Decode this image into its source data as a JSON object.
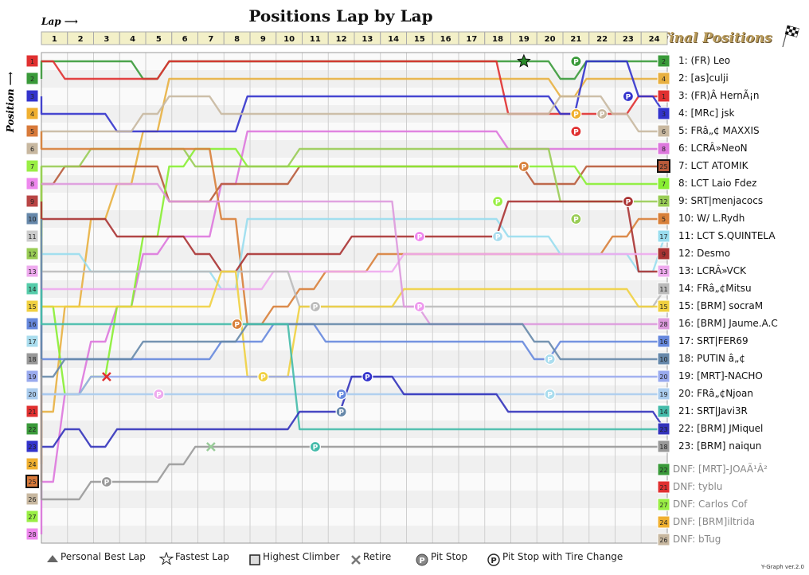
{
  "title": "Positions Lap by Lap",
  "lap_label": "Lap",
  "position_label": "Position",
  "final_title": "Final Positions",
  "footer": "Y-Graph ver.2.0",
  "legend": {
    "personal_best": "Personal Best Lap",
    "fastest": "Fastest Lap",
    "highest_climber": "Highest Climber",
    "retire": "Retire",
    "pit_stop": "Pit Stop",
    "pit_tire": "Pit Stop with Tire Change"
  },
  "chart_data": {
    "type": "line",
    "laps": [
      1,
      2,
      3,
      4,
      5,
      6,
      7,
      8,
      9,
      10,
      11,
      12,
      13,
      14,
      15,
      16,
      17,
      18,
      19,
      20,
      21,
      22,
      23,
      24
    ],
    "positions": [
      1,
      2,
      3,
      4,
      5,
      6,
      7,
      8,
      9,
      10,
      11,
      12,
      13,
      14,
      15,
      16,
      17,
      18,
      19,
      20,
      21,
      22,
      23,
      24,
      25,
      26,
      27,
      28
    ],
    "grid": [
      {
        "pos": 1,
        "num": "1",
        "color": "#e03030"
      },
      {
        "pos": 2,
        "num": "2",
        "color": "#3a9a3a"
      },
      {
        "pos": 3,
        "num": "3",
        "color": "#3333cc"
      },
      {
        "pos": 4,
        "num": "4",
        "color": "#f0b030"
      },
      {
        "pos": 5,
        "num": "5",
        "color": "#d87a3a"
      },
      {
        "pos": 6,
        "num": "6",
        "color": "#c8b8a0"
      },
      {
        "pos": 7,
        "num": "7",
        "color": "#99ee44"
      },
      {
        "pos": 8,
        "num": "8",
        "color": "#ee88ee"
      },
      {
        "pos": 9,
        "num": "9",
        "color": "#b84444"
      },
      {
        "pos": 10,
        "num": "10",
        "color": "#6688aa"
      },
      {
        "pos": 11,
        "num": "11",
        "color": "#cccccc"
      },
      {
        "pos": 12,
        "num": "12",
        "color": "#99cc55"
      },
      {
        "pos": 13,
        "num": "13",
        "color": "#eeaaee"
      },
      {
        "pos": 14,
        "num": "14",
        "color": "#55ccaa"
      },
      {
        "pos": 15,
        "num": "15",
        "color": "#f0d040"
      },
      {
        "pos": 16,
        "num": "16",
        "color": "#6688dd"
      },
      {
        "pos": 17,
        "num": "17",
        "color": "#aaddee"
      },
      {
        "pos": 18,
        "num": "18",
        "color": "#999999"
      },
      {
        "pos": 19,
        "num": "19",
        "color": "#99aaee"
      },
      {
        "pos": 20,
        "num": "20",
        "color": "#aaccee"
      },
      {
        "pos": 21,
        "num": "21",
        "color": "#e03030"
      },
      {
        "pos": 22,
        "num": "22",
        "color": "#3a9a3a"
      },
      {
        "pos": 23,
        "num": "23",
        "color": "#3333cc"
      },
      {
        "pos": 24,
        "num": "24",
        "color": "#f0b030"
      },
      {
        "pos": 25,
        "num": "25",
        "color": "#d87a3a"
      },
      {
        "pos": 26,
        "num": "26",
        "color": "#c8b8a0"
      },
      {
        "pos": 27,
        "num": "27",
        "color": "#99ee44"
      },
      {
        "pos": 28,
        "num": "28",
        "color": "#ee88ee"
      }
    ],
    "series": [
      {
        "name": "1: (FR) Leo",
        "num": "2",
        "color": "#3a9a3a",
        "start": 2,
        "path": [
          1,
          1,
          1,
          1,
          2,
          1,
          1,
          1,
          1,
          1,
          1,
          1,
          1,
          1,
          1,
          1,
          1,
          1,
          1,
          1,
          2,
          1,
          1,
          1,
          1
        ]
      },
      {
        "name": "2: [as]culji",
        "num": "4",
        "color": "#e8b040",
        "start": 24,
        "path": [
          21,
          15,
          10,
          8,
          5,
          2,
          2,
          2,
          2,
          2,
          2,
          2,
          2,
          2,
          2,
          2,
          2,
          2,
          2,
          2,
          3,
          2,
          2,
          2,
          2
        ]
      },
      {
        "name": "3: (FR)Â HernÃ¡n",
        "num": "1",
        "color": "#e03030",
        "start": 1,
        "path": [
          1,
          2,
          2,
          2,
          2,
          1,
          1,
          1,
          1,
          1,
          1,
          1,
          1,
          1,
          1,
          1,
          1,
          1,
          4,
          4,
          4,
          4,
          4,
          3,
          3
        ]
      },
      {
        "name": "4: [MRc] jsk",
        "num": "3",
        "color": "#3333cc",
        "start": 3,
        "path": [
          4,
          4,
          4,
          5,
          5,
          5,
          5,
          5,
          3,
          3,
          3,
          3,
          3,
          3,
          3,
          3,
          3,
          3,
          3,
          3,
          4,
          1,
          1,
          3,
          4
        ]
      },
      {
        "name": "5: FRâ„¢ MAXXIS",
        "num": "6",
        "color": "#c8b8a0",
        "start": 6,
        "path": [
          5,
          5,
          5,
          5,
          4,
          3,
          3,
          4,
          4,
          4,
          4,
          4,
          4,
          4,
          4,
          4,
          4,
          4,
          4,
          4,
          3,
          3,
          4,
          5,
          5
        ]
      },
      {
        "name": "6: LCRÂ»NeoN",
        "num": "8",
        "color": "#dd77dd",
        "start": 28,
        "path": [
          25,
          20,
          17,
          15,
          12,
          11,
          11,
          8,
          5,
          5,
          5,
          5,
          5,
          5,
          5,
          5,
          5,
          5,
          6,
          6,
          6,
          6,
          6,
          6,
          6
        ]
      },
      {
        "name": "7: LCT ATOMIK",
        "num": "25",
        "color": "#b85a3a",
        "start": 25,
        "path": [
          8,
          7,
          7,
          7,
          7,
          9,
          9,
          8,
          8,
          8,
          7,
          7,
          7,
          7,
          7,
          7,
          7,
          7,
          7,
          8,
          8,
          7,
          7,
          7,
          7
        ]
      },
      {
        "name": "8: LCT Laio Fdez",
        "num": "7",
        "color": "#88ee33",
        "start": 7,
        "path": [
          15,
          20,
          19,
          15,
          11,
          7,
          6,
          6,
          7,
          7,
          7,
          7,
          7,
          7,
          7,
          7,
          7,
          7,
          7,
          7,
          7,
          8,
          8,
          8,
          8
        ]
      },
      {
        "name": "9: SRT|menjacocs",
        "num": "12",
        "color": "#99cc55",
        "start": 12,
        "path": [
          7,
          7,
          6,
          6,
          6,
          6,
          7,
          7,
          7,
          7,
          6,
          6,
          6,
          6,
          6,
          6,
          6,
          6,
          6,
          6,
          9,
          9,
          9,
          9,
          9
        ]
      },
      {
        "name": "10: W/ L.Rydh",
        "num": "5",
        "color": "#d8803a",
        "start": 5,
        "path": [
          6,
          6,
          6,
          6,
          6,
          6,
          6,
          10,
          16,
          15,
          14,
          13,
          13,
          12,
          12,
          12,
          12,
          12,
          12,
          12,
          12,
          12,
          11,
          10,
          10
        ]
      },
      {
        "name": "11: LCT S.QUINTELA",
        "num": "17",
        "color": "#99ddee",
        "start": 17,
        "path": [
          12,
          12,
          13,
          13,
          13,
          13,
          13,
          14,
          10,
          10,
          10,
          10,
          10,
          10,
          10,
          10,
          10,
          10,
          11,
          11,
          12,
          12,
          12,
          13,
          11
        ]
      },
      {
        "name": "12: Desmo",
        "num": "9",
        "color": "#aa3333",
        "start": 9,
        "path": [
          10,
          10,
          10,
          11,
          11,
          11,
          12,
          13,
          12,
          12,
          12,
          12,
          11,
          11,
          11,
          11,
          11,
          11,
          9,
          9,
          9,
          9,
          9,
          13,
          13
        ]
      },
      {
        "name": "13: LCRÂ»VCK",
        "num": "13",
        "color": "#eeaaee",
        "start": 13,
        "path": [
          14,
          14,
          14,
          14,
          14,
          14,
          14,
          14,
          14,
          13,
          13,
          13,
          13,
          13,
          12,
          12,
          12,
          12,
          12,
          12,
          12,
          12,
          12,
          12,
          12
        ]
      },
      {
        "name": "14: FRâ„¢Mitsu",
        "num": "11",
        "color": "#bbbbbb",
        "start": 11,
        "path": [
          13,
          13,
          13,
          13,
          13,
          13,
          13,
          13,
          13,
          13,
          15,
          15,
          15,
          15,
          15,
          15,
          15,
          15,
          15,
          15,
          15,
          15,
          15,
          15,
          14
        ]
      },
      {
        "name": "15: [BRM] socraM",
        "num": "15",
        "color": "#f0d040",
        "start": 15,
        "path": [
          15,
          15,
          15,
          15,
          15,
          15,
          15,
          13,
          19,
          19,
          15,
          15,
          15,
          15,
          14,
          14,
          14,
          14,
          14,
          14,
          14,
          14,
          14,
          15,
          15
        ]
      },
      {
        "name": "16: [BRM] Jaume.A.C",
        "num": "28",
        "color": "#dd99dd",
        "start": 8,
        "path": [
          8,
          8,
          8,
          8,
          8,
          9,
          9,
          9,
          9,
          9,
          9,
          9,
          9,
          9,
          15,
          16,
          16,
          16,
          16,
          16,
          16,
          16,
          16,
          16,
          16
        ]
      },
      {
        "name": "17: SRT|FER69",
        "num": "16",
        "color": "#6688dd",
        "start": 16,
        "path": [
          18,
          18,
          18,
          18,
          18,
          18,
          18,
          17,
          17,
          16,
          16,
          17,
          17,
          17,
          17,
          17,
          17,
          17,
          17,
          18,
          17,
          17,
          17,
          17,
          17
        ]
      },
      {
        "name": "18: PUTIN â„¢",
        "num": "10",
        "color": "#6688aa",
        "start": 10,
        "path": [
          19,
          18,
          18,
          18,
          17,
          17,
          17,
          17,
          16,
          16,
          16,
          16,
          16,
          16,
          16,
          16,
          16,
          16,
          16,
          17,
          18,
          18,
          18,
          18,
          18
        ]
      },
      {
        "name": "19: [MRT]-NACHO",
        "num": "20",
        "color": "#99aaee",
        "start": 20,
        "path": [
          20,
          20,
          19,
          19,
          19,
          19,
          19,
          19,
          19,
          19,
          19,
          19,
          19,
          19,
          19,
          19,
          19,
          19,
          19,
          19,
          19,
          19,
          19,
          19,
          19
        ]
      },
      {
        "name": "20: FRâ„¢Njoan",
        "num": "19",
        "color": "#aaccee",
        "start": 19,
        "path": [
          20,
          20,
          20,
          20,
          20,
          20,
          20,
          20,
          20,
          20,
          20,
          20,
          20,
          20,
          20,
          20,
          20,
          20,
          20,
          20,
          20,
          20,
          20,
          20,
          20
        ]
      },
      {
        "name": "21: SRT|Javi3R",
        "num": "14",
        "color": "#44bbaa",
        "start": 14,
        "path": [
          16,
          16,
          16,
          16,
          16,
          16,
          16,
          16,
          16,
          16,
          22,
          22,
          22,
          22,
          22,
          22,
          22,
          22,
          22,
          22,
          22,
          22,
          22,
          22,
          22
        ]
      },
      {
        "name": "22: [BRM] JMiquel",
        "num": "23",
        "color": "#3333bb",
        "start": 23,
        "path": [
          23,
          22,
          23,
          22,
          22,
          22,
          22,
          22,
          22,
          22,
          21,
          21,
          19,
          19,
          20,
          20,
          20,
          20,
          21,
          21,
          21,
          21,
          21,
          21,
          22
        ]
      },
      {
        "name": "23: [BRM] naiqun",
        "num": "18",
        "color": "#999999",
        "start": 18,
        "path": [
          26,
          26,
          25,
          25,
          25,
          24,
          23,
          23,
          23,
          23,
          23,
          23,
          23,
          23,
          23,
          23,
          23,
          23,
          23,
          23,
          23,
          23,
          23,
          23,
          23
        ]
      }
    ],
    "dnf": [
      {
        "name": "DNF: [MRT]-JOAÃ¹Â²",
        "num": "22",
        "color": "#3a9a3a"
      },
      {
        "name": "DNF: tyblu",
        "num": "21",
        "color": "#e03030"
      },
      {
        "name": "DNF: Carlos Cof",
        "num": "27",
        "color": "#99ee44"
      },
      {
        "name": "DNF: [BRM]iltrida",
        "num": "24",
        "color": "#f0b030"
      },
      {
        "name": "DNF: bTug",
        "num": "26",
        "color": "#c8b8a0"
      }
    ],
    "markers": [
      {
        "type": "fastest",
        "lap": 18,
        "pos": 1
      },
      {
        "type": "pit",
        "lap": 20,
        "pos": 1,
        "color": "#3a9a3a"
      },
      {
        "type": "pit",
        "lap": 20,
        "pos": 4,
        "color": "#f0b030"
      },
      {
        "type": "pit",
        "lap": 20,
        "pos": 5,
        "color": "#e03030"
      },
      {
        "type": "pit",
        "lap": 21,
        "pos": 4,
        "color": "#c8b8a0"
      },
      {
        "type": "pit",
        "lap": 22,
        "pos": 3,
        "color": "#3333cc"
      },
      {
        "type": "pit",
        "lap": 18,
        "pos": 7,
        "color": "#d8803a"
      },
      {
        "type": "pit",
        "lap": 17,
        "pos": 9,
        "color": "#99ee44"
      },
      {
        "type": "pit",
        "lap": 20,
        "pos": 10,
        "color": "#99cc55"
      },
      {
        "type": "pit",
        "lap": 22,
        "pos": 9,
        "color": "#aa3333"
      },
      {
        "type": "pit",
        "lap": 14,
        "pos": 11,
        "color": "#ee88ee"
      },
      {
        "type": "pit",
        "lap": 17,
        "pos": 11,
        "color": "#aaddee"
      },
      {
        "type": "pit",
        "lap": 10,
        "pos": 15,
        "color": "#bbbbbb"
      },
      {
        "type": "pit",
        "lap": 14,
        "pos": 15,
        "color": "#ee99ee"
      },
      {
        "type": "pit",
        "lap": 7,
        "pos": 16,
        "color": "#d8803a"
      },
      {
        "type": "pit",
        "lap": 8,
        "pos": 19,
        "color": "#f0d040"
      },
      {
        "type": "pit",
        "lap": 19,
        "pos": 18,
        "color": "#aaddee"
      },
      {
        "type": "pit",
        "lap": 12,
        "pos": 19,
        "color": "#3333cc"
      },
      {
        "type": "pit",
        "lap": 11,
        "pos": 20,
        "color": "#6688dd"
      },
      {
        "type": "pit",
        "lap": 19,
        "pos": 20,
        "color": "#aaddee"
      },
      {
        "type": "pit",
        "lap": 4,
        "pos": 20,
        "color": "#eeaaee"
      },
      {
        "type": "pit",
        "lap": 11,
        "pos": 21,
        "color": "#6688aa"
      },
      {
        "type": "pit",
        "lap": 10,
        "pos": 23,
        "color": "#44bbaa"
      },
      {
        "type": "pit",
        "lap": 2,
        "pos": 25,
        "color": "#999999"
      },
      {
        "type": "retire",
        "lap": 2,
        "pos": 19,
        "color": "#e03030"
      },
      {
        "type": "retire",
        "lap": 6,
        "pos": 23,
        "color": "#99cc99"
      }
    ]
  }
}
